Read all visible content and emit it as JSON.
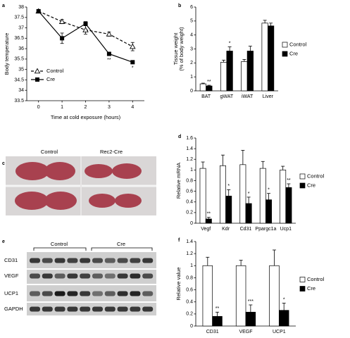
{
  "chart_data": [
    {
      "type": "line",
      "panel": "a",
      "ylabel": "Body temperature",
      "xlabel": "Time at cold exposure (hours)",
      "x": [
        0,
        1,
        2,
        3,
        4
      ],
      "xlim": [
        -0.5,
        4.5
      ],
      "xticks": [
        0,
        1,
        2,
        3,
        4
      ],
      "ylim": [
        33.5,
        38
      ],
      "yticks": [
        33.5,
        34,
        34.5,
        35,
        35.5,
        36,
        36.5,
        37,
        37.5,
        38
      ],
      "legend": "lower left",
      "series": [
        {
          "name": "Control",
          "color": "#000000",
          "marker": "triangle",
          "dash": true,
          "values": [
            37.8,
            37.3,
            36.9,
            36.7,
            36.1
          ],
          "errors": [
            0.05,
            0.1,
            0.2,
            0.1,
            0.2
          ]
        },
        {
          "name": "Cre",
          "color": "#000000",
          "marker": "square",
          "dash": false,
          "values": [
            37.8,
            36.5,
            37.2,
            35.75,
            35.35
          ],
          "errors": [
            0.05,
            0.25,
            0.1,
            0.05,
            0.05
          ]
        }
      ],
      "annotations": [
        {
          "text": "**",
          "x": 3,
          "series": "Cre"
        },
        {
          "text": "*",
          "x": 4,
          "series": "Cre"
        }
      ]
    },
    {
      "type": "bar",
      "panel": "b",
      "ylabel": [
        "Tissue weight",
        "(% of body weight)"
      ],
      "categories": [
        "BAT",
        "gWAT",
        "iWAT",
        "Liver"
      ],
      "ylim": [
        0,
        6
      ],
      "yticks": [
        0,
        1,
        2,
        3,
        4,
        5,
        6
      ],
      "legend": "right",
      "series": [
        {
          "name": "Control",
          "color": "#ffffff",
          "values": [
            0.5,
            2.05,
            2.1,
            4.85
          ],
          "errors": [
            0.05,
            0.15,
            0.15,
            0.2
          ]
        },
        {
          "name": "Cre",
          "color": "#000000",
          "values": [
            0.35,
            2.85,
            2.85,
            4.65
          ],
          "errors": [
            0.05,
            0.3,
            0.35,
            0.2
          ]
        }
      ],
      "annotations": [
        {
          "text": "**",
          "category": "BAT",
          "series": "Cre"
        },
        {
          "text": "*",
          "category": "gWAT",
          "series": "Cre"
        }
      ]
    },
    {
      "type": "bar",
      "panel": "d",
      "ylabel": "Relative mRNA",
      "categories": [
        "Vegf",
        "Kdr",
        "Cd31",
        "Ppargc1a",
        "Ucp1"
      ],
      "ylim": [
        0,
        1.6
      ],
      "yticks": [
        0,
        0.2,
        0.4,
        0.6,
        0.8,
        1,
        1.2,
        1.4,
        1.6
      ],
      "legend": "right",
      "series": [
        {
          "name": "Control",
          "color": "#ffffff",
          "values": [
            1.03,
            1.08,
            1.1,
            1.03,
            1.0
          ],
          "errors": [
            0.12,
            0.2,
            0.27,
            0.13,
            0.07
          ]
        },
        {
          "name": "Cre",
          "color": "#000000",
          "values": [
            0.08,
            0.51,
            0.37,
            0.44,
            0.67
          ],
          "errors": [
            0.03,
            0.12,
            0.12,
            0.12,
            0.07
          ]
        }
      ],
      "annotations": [
        {
          "text": "**",
          "category": "Vegf",
          "series": "Cre"
        },
        {
          "text": "*",
          "category": "Kdr",
          "series": "Cre"
        },
        {
          "text": "*",
          "category": "Cd31",
          "series": "Cre"
        },
        {
          "text": "*",
          "category": "Ppargc1a",
          "series": "Cre"
        },
        {
          "text": "**",
          "category": "Ucp1",
          "series": "Cre"
        }
      ]
    },
    {
      "type": "bar",
      "panel": "f",
      "ylabel": "Relative value",
      "categories": [
        "CD31",
        "VEGF",
        "UCP1"
      ],
      "ylim": [
        0,
        1.4
      ],
      "yticks": [
        0,
        0.2,
        0.4,
        0.6,
        0.8,
        1,
        1.2,
        1.4
      ],
      "legend": "right",
      "series": [
        {
          "name": "Control",
          "color": "#ffffff",
          "values": [
            1.0,
            1.0,
            1.0
          ],
          "errors": [
            0.14,
            0.09,
            0.26
          ]
        },
        {
          "name": "Cre",
          "color": "#000000",
          "values": [
            0.16,
            0.23,
            0.26
          ],
          "errors": [
            0.07,
            0.12,
            0.12
          ]
        }
      ],
      "annotations": [
        {
          "text": "**",
          "category": "CD31",
          "series": "Cre"
        },
        {
          "text": "***",
          "category": "VEGF",
          "series": "Cre"
        },
        {
          "text": "*",
          "category": "UCP1",
          "series": "Cre"
        }
      ]
    }
  ],
  "photo_panel": {
    "panel": "c",
    "labels": [
      "Control",
      "Rec2-Cre"
    ]
  },
  "blot_panel": {
    "panel": "e",
    "groups": [
      "Control",
      "Cre"
    ],
    "rows": [
      "CD31",
      "VEGF",
      "UCP1",
      "GAPDH"
    ]
  }
}
